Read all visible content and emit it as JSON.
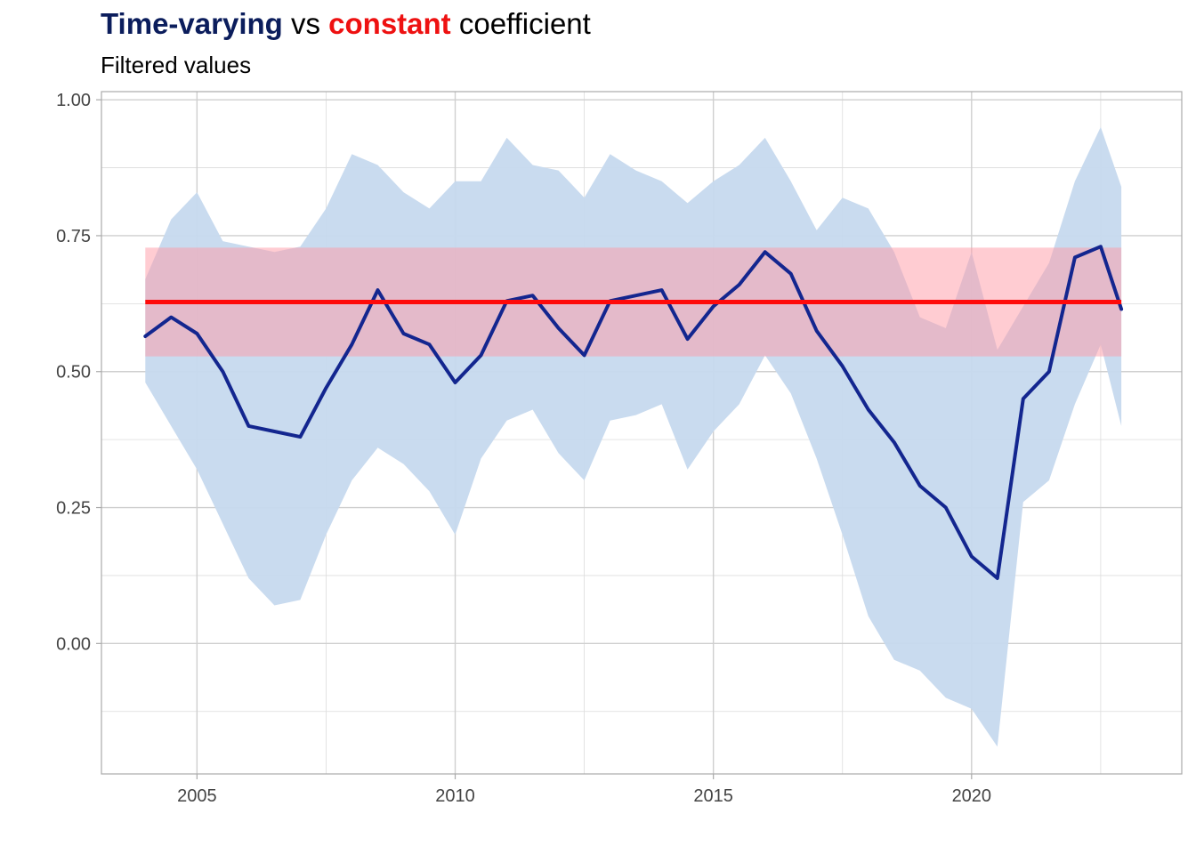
{
  "title": {
    "part1": "Time-varying",
    "part2": " vs ",
    "part3": "constant",
    "part4": " coefficient"
  },
  "subtitle": "Filtered values",
  "colors": {
    "time_varying": "#0b1d5c",
    "constant": "#ee1111",
    "ribbon_tv": "#c6d9ee",
    "ribbon_const": "#ffc9cf",
    "grid": "#dcdcdc",
    "panel_border": "#aaaaaa",
    "tick_text": "#444444"
  },
  "chart_data": {
    "type": "line",
    "title": "Time-varying vs constant coefficient",
    "subtitle": "Filtered values",
    "xlabel": "",
    "ylabel": "",
    "xlim": [
      2003.15,
      2024.07
    ],
    "ylim": [
      -0.24,
      1.015
    ],
    "x_ticks": [
      2005,
      2010,
      2015,
      2020
    ],
    "x_tick_labels": [
      "2005",
      "2010",
      "2015",
      "2020"
    ],
    "y_ticks": [
      0,
      0.25,
      0.5,
      0.75,
      1.0
    ],
    "y_tick_labels": [
      "0.00",
      "0.25",
      "0.50",
      "0.75",
      "1.00"
    ],
    "grid": true,
    "legend": "none",
    "series": [
      {
        "name": "Time-varying",
        "x": [
          2004.0,
          2004.5,
          2005.0,
          2005.5,
          2006.0,
          2006.5,
          2007.0,
          2007.5,
          2008.0,
          2008.5,
          2009.0,
          2009.5,
          2010.0,
          2010.5,
          2011.0,
          2011.5,
          2012.0,
          2012.5,
          2013.0,
          2013.5,
          2014.0,
          2014.5,
          2015.0,
          2015.5,
          2016.0,
          2016.5,
          2017.0,
          2017.5,
          2018.0,
          2018.5,
          2019.0,
          2019.5,
          2020.0,
          2020.5,
          2021.0,
          2021.5,
          2022.0,
          2022.5,
          2022.9
        ],
        "values": [
          0.565,
          0.6,
          0.57,
          0.5,
          0.4,
          0.39,
          0.38,
          0.47,
          0.55,
          0.65,
          0.57,
          0.55,
          0.48,
          0.53,
          0.63,
          0.64,
          0.58,
          0.53,
          0.63,
          0.64,
          0.65,
          0.56,
          0.62,
          0.66,
          0.72,
          0.68,
          0.575,
          0.51,
          0.43,
          0.37,
          0.29,
          0.25,
          0.16,
          0.12,
          0.45,
          0.5,
          0.71,
          0.73,
          0.615
        ],
        "upper": [
          0.67,
          0.78,
          0.83,
          0.74,
          0.73,
          0.72,
          0.73,
          0.8,
          0.9,
          0.88,
          0.83,
          0.8,
          0.85,
          0.85,
          0.93,
          0.88,
          0.87,
          0.82,
          0.9,
          0.87,
          0.85,
          0.81,
          0.85,
          0.88,
          0.93,
          0.85,
          0.76,
          0.82,
          0.8,
          0.72,
          0.6,
          0.58,
          0.72,
          0.54,
          0.62,
          0.7,
          0.85,
          0.95,
          0.84
        ],
        "lower": [
          0.48,
          0.4,
          0.32,
          0.22,
          0.12,
          0.07,
          0.08,
          0.2,
          0.3,
          0.36,
          0.33,
          0.28,
          0.2,
          0.34,
          0.41,
          0.43,
          0.35,
          0.3,
          0.41,
          0.42,
          0.44,
          0.32,
          0.39,
          0.44,
          0.53,
          0.46,
          0.34,
          0.2,
          0.05,
          -0.03,
          -0.05,
          -0.1,
          -0.12,
          -0.19,
          0.26,
          0.3,
          0.44,
          0.55,
          0.4
        ]
      },
      {
        "name": "Constant",
        "x": [
          2004.0,
          2022.9
        ],
        "values": [
          0.628,
          0.628
        ],
        "upper": [
          0.728,
          0.728
        ],
        "lower": [
          0.528,
          0.528
        ]
      }
    ]
  }
}
